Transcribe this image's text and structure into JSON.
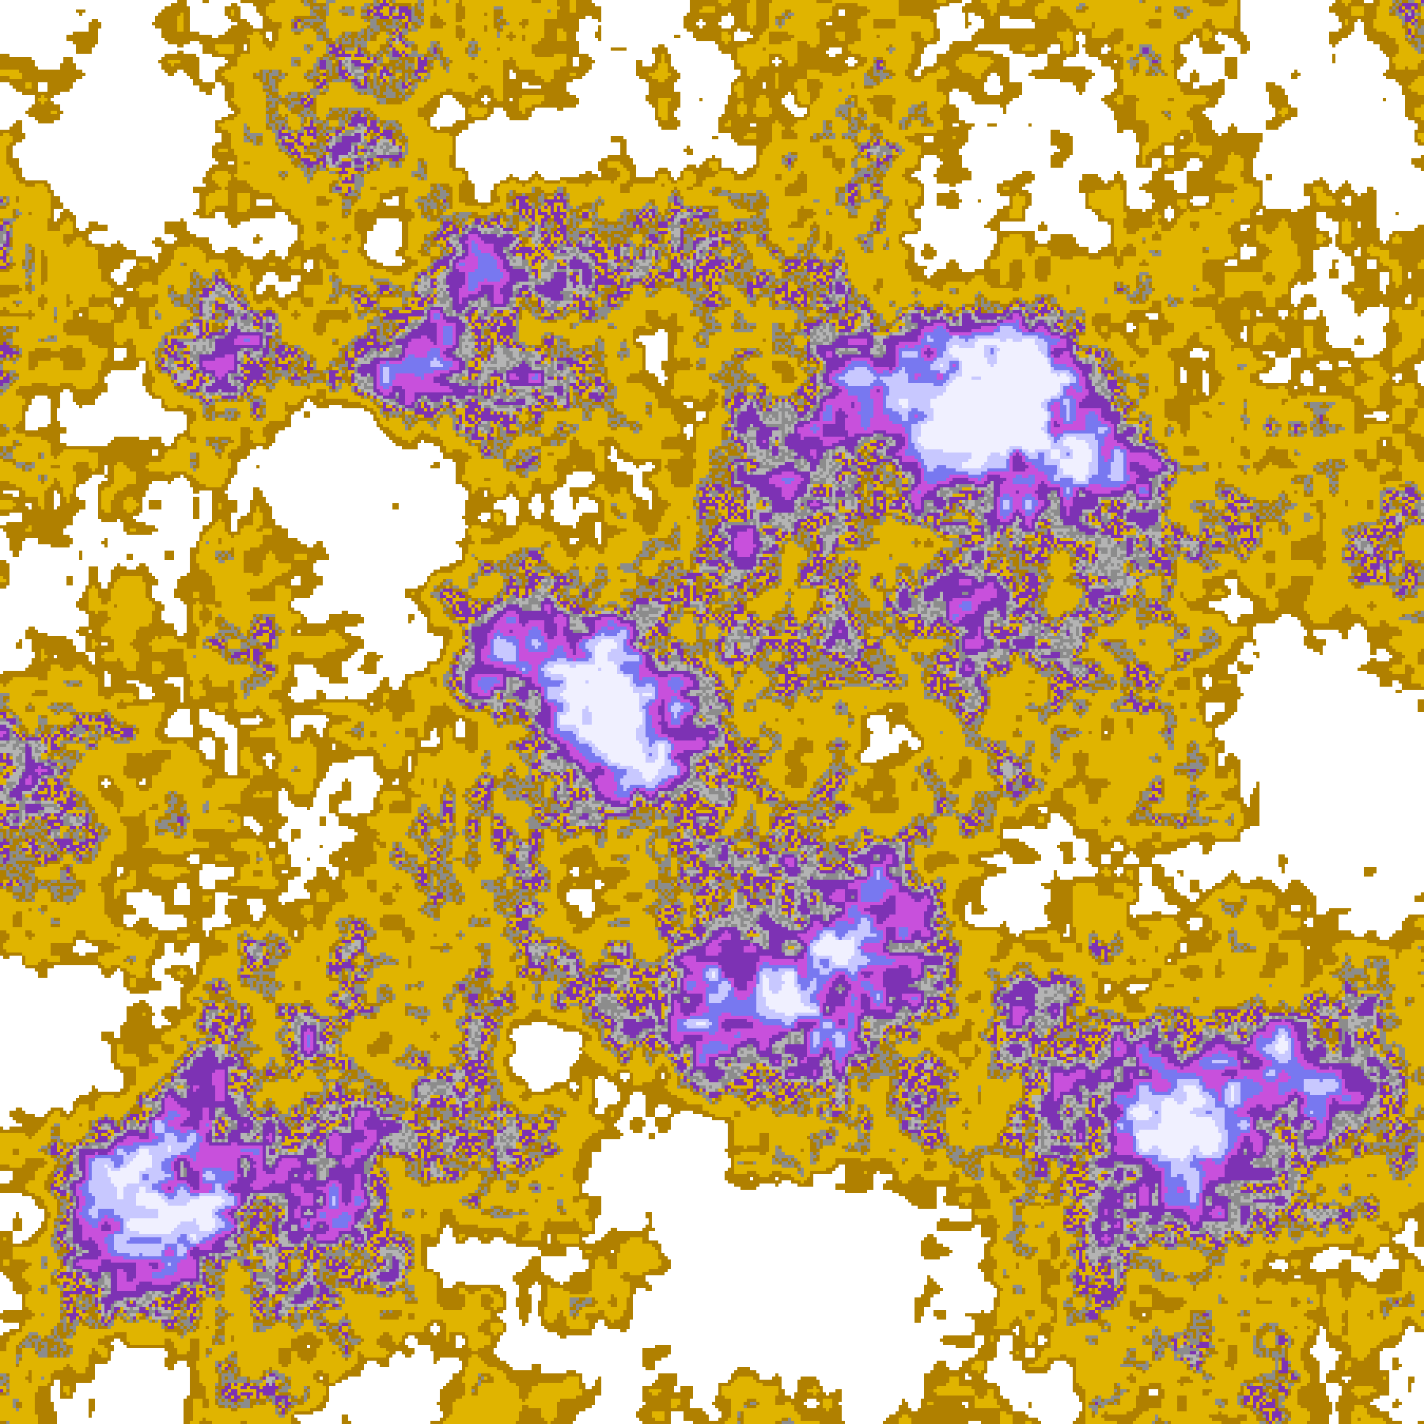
{
  "map": {
    "palette": {
      "clear": "#ffffff",
      "dark_gold": "#b08000",
      "gold": "#e0b400",
      "gray": "#8c8c8c",
      "light_gray": "#b4b4b4",
      "purple": "#7d32b4",
      "magenta": "#c850dc",
      "blue_violet": "#7878f0",
      "lavender": "#c8c8ff",
      "near_white": "#f0f0ff"
    }
  }
}
